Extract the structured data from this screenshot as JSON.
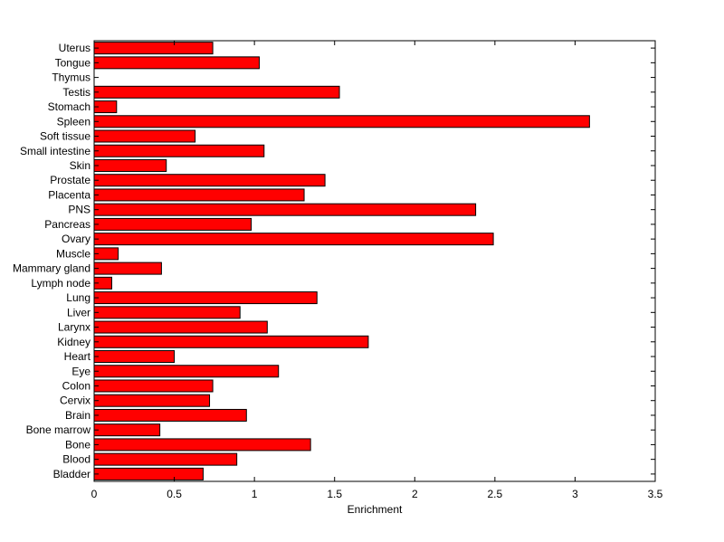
{
  "chart_data": {
    "type": "bar",
    "orientation": "horizontal",
    "title": "",
    "xlabel": "Enrichment",
    "ylabel": "",
    "xlim": [
      0,
      3.5
    ],
    "xticks": [
      "0",
      "0.5",
      "1",
      "1.5",
      "2",
      "2.5",
      "3",
      "3.5"
    ],
    "bar_color": "#ff0000",
    "grid": false,
    "categories": [
      "Bladder",
      "Blood",
      "Bone",
      "Bone marrow",
      "Brain",
      "Cervix",
      "Colon",
      "Eye",
      "Heart",
      "Kidney",
      "Larynx",
      "Liver",
      "Lung",
      "Lymph node",
      "Mammary gland",
      "Muscle",
      "Ovary",
      "Pancreas",
      "PNS",
      "Placenta",
      "Prostate",
      "Skin",
      "Small intestine",
      "Soft tissue",
      "Spleen",
      "Stomach",
      "Testis",
      "Thymus",
      "Tongue",
      "Uterus"
    ],
    "values": [
      0.68,
      0.89,
      1.35,
      0.41,
      0.95,
      0.72,
      0.74,
      1.15,
      0.5,
      1.71,
      1.08,
      0.91,
      1.39,
      0.11,
      0.42,
      0.15,
      2.49,
      0.98,
      2.38,
      1.31,
      1.44,
      0.45,
      1.06,
      0.63,
      3.09,
      0.14,
      1.53,
      0.0,
      1.03,
      0.74
    ]
  }
}
